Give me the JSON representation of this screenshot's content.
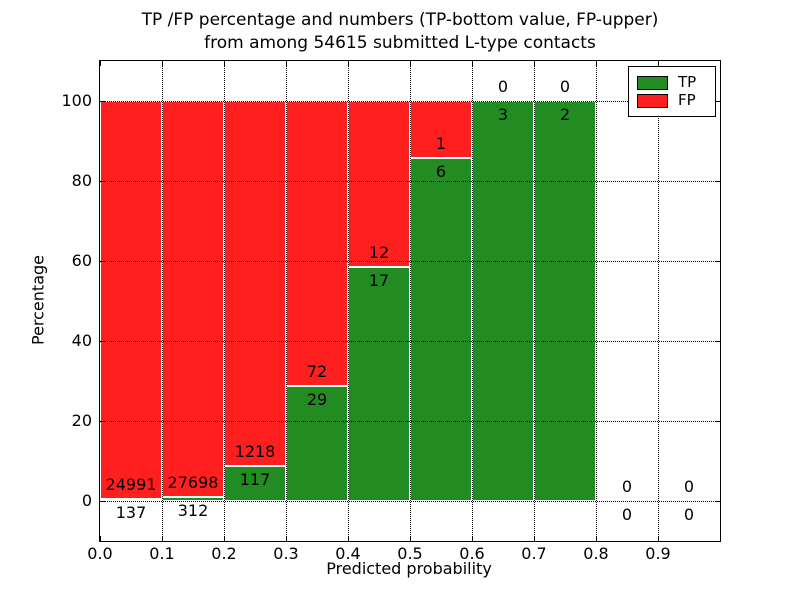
{
  "chart_data": {
    "type": "bar",
    "stacked": true,
    "percent_scale": true,
    "title_line1": "TP /FP percentage and numbers (TP-bottom value, FP-upper)",
    "title_line2": "from among 54615 submitted L-type contacts",
    "xlabel": "Predicted probability",
    "ylabel": "Percentage",
    "x_tick_labels": [
      "0.0",
      "0.1",
      "0.2",
      "0.3",
      "0.4",
      "0.5",
      "0.6",
      "0.7",
      "0.8",
      "0.9"
    ],
    "y_tick_labels": [
      "0",
      "20",
      "40",
      "60",
      "80",
      "100"
    ],
    "y_tick_values": [
      0,
      20,
      40,
      60,
      80,
      100
    ],
    "xlim": [
      0.0,
      1.0
    ],
    "ylim": [
      -10,
      110
    ],
    "bin_width": 0.1,
    "grid_style": "dotted",
    "legend_position": "upper right",
    "colors": {
      "tp": "#228b22",
      "fp": "#ff1f1f"
    },
    "legend": [
      {
        "label": "TP",
        "color": "#228b22"
      },
      {
        "label": "FP",
        "color": "#ff1f1f"
      }
    ],
    "bins": [
      {
        "range": "0.0-0.1",
        "tp": 137,
        "fp": 24991
      },
      {
        "range": "0.1-0.2",
        "tp": 312,
        "fp": 27698
      },
      {
        "range": "0.2-0.3",
        "tp": 117,
        "fp": 1218
      },
      {
        "range": "0.3-0.4",
        "tp": 29,
        "fp": 72
      },
      {
        "range": "0.4-0.5",
        "tp": 17,
        "fp": 12
      },
      {
        "range": "0.5-0.6",
        "tp": 6,
        "fp": 1
      },
      {
        "range": "0.6-0.7",
        "tp": 3,
        "fp": 0
      },
      {
        "range": "0.7-0.8",
        "tp": 2,
        "fp": 0
      },
      {
        "range": "0.8-0.9",
        "tp": 0,
        "fp": 0
      },
      {
        "range": "0.9-1.0",
        "tp": 0,
        "fp": 0
      }
    ]
  }
}
